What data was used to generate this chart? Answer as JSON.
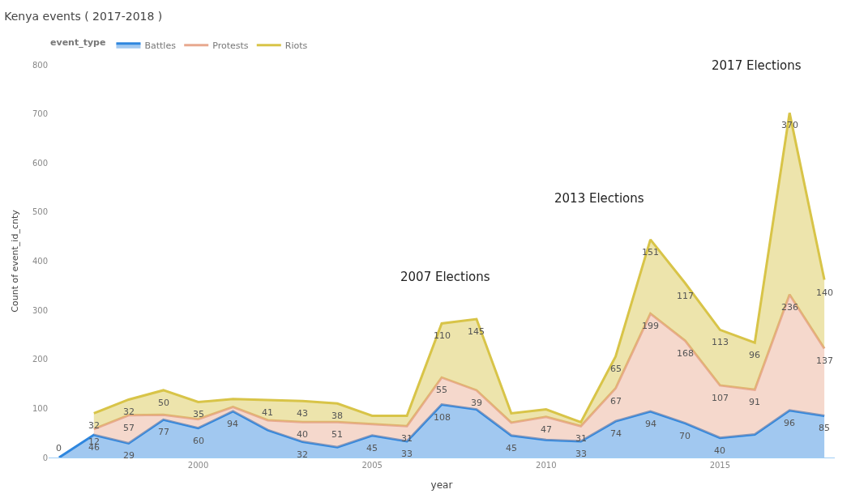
{
  "chart_data": {
    "type": "area",
    "stacked": true,
    "title": "Kenya events ( 2017-2018 )",
    "xlabel": "year",
    "ylabel": "Count of event_id_cnty",
    "legend_title": "event_type",
    "legend": "top left",
    "x": [
      1996,
      1997,
      1998,
      1999,
      2000,
      2001,
      2002,
      2003,
      2004,
      2005,
      2006,
      2007,
      2008,
      2009,
      2010,
      2011,
      2012,
      2013,
      2014,
      2015,
      2016,
      2017,
      2018
    ],
    "series": [
      {
        "name": "Battles",
        "color": "#2e86de",
        "values": [
          0,
          46,
          29,
          77,
          60,
          94,
          56,
          32,
          21,
          45,
          33,
          108,
          98,
          45,
          36,
          33,
          74,
          94,
          70,
          40,
          47,
          96,
          85
        ],
        "value_labels": [
          "0",
          "46",
          "29",
          "77",
          "60",
          "94",
          null,
          "32",
          null,
          "45",
          "33",
          "108",
          null,
          "45",
          null,
          "33",
          "74",
          "94",
          "70",
          "40",
          null,
          "96",
          "85"
        ]
      },
      {
        "name": "Protests",
        "color": "#e8a98f",
        "values": [
          null,
          12,
          57,
          10,
          18,
          9,
          20,
          40,
          51,
          23,
          31,
          55,
          39,
          26,
          47,
          31,
          67,
          199,
          168,
          107,
          91,
          236,
          137
        ],
        "value_labels": [
          null,
          "12",
          "57",
          null,
          null,
          null,
          null,
          "40",
          "51",
          null,
          "31",
          "55",
          "39",
          null,
          "47",
          "31",
          "67",
          "199",
          "168",
          "107",
          "91",
          "236",
          "137"
        ]
      },
      {
        "name": "Riots",
        "color": "#d8c448",
        "values": [
          null,
          32,
          32,
          50,
          35,
          16,
          41,
          43,
          38,
          17,
          21,
          110,
          145,
          19,
          15,
          8,
          65,
          151,
          117,
          113,
          96,
          370,
          140
        ],
        "value_labels": [
          null,
          "32",
          "32",
          "50",
          "35",
          null,
          "41",
          "43",
          "38",
          null,
          null,
          "110",
          "145",
          null,
          null,
          null,
          "65",
          "151",
          "117",
          "113",
          "96",
          "370",
          "140"
        ]
      }
    ],
    "xlim": [
      1995.7,
      2018.3
    ],
    "xticks": [
      2000,
      2005,
      2010,
      2015
    ],
    "ylim": [
      0,
      800
    ],
    "yticks": [
      0,
      100,
      200,
      300,
      400,
      500,
      600,
      700,
      800
    ],
    "annotations": [
      "2007 Elections",
      "2013 Elections",
      "2017 Elections"
    ]
  }
}
